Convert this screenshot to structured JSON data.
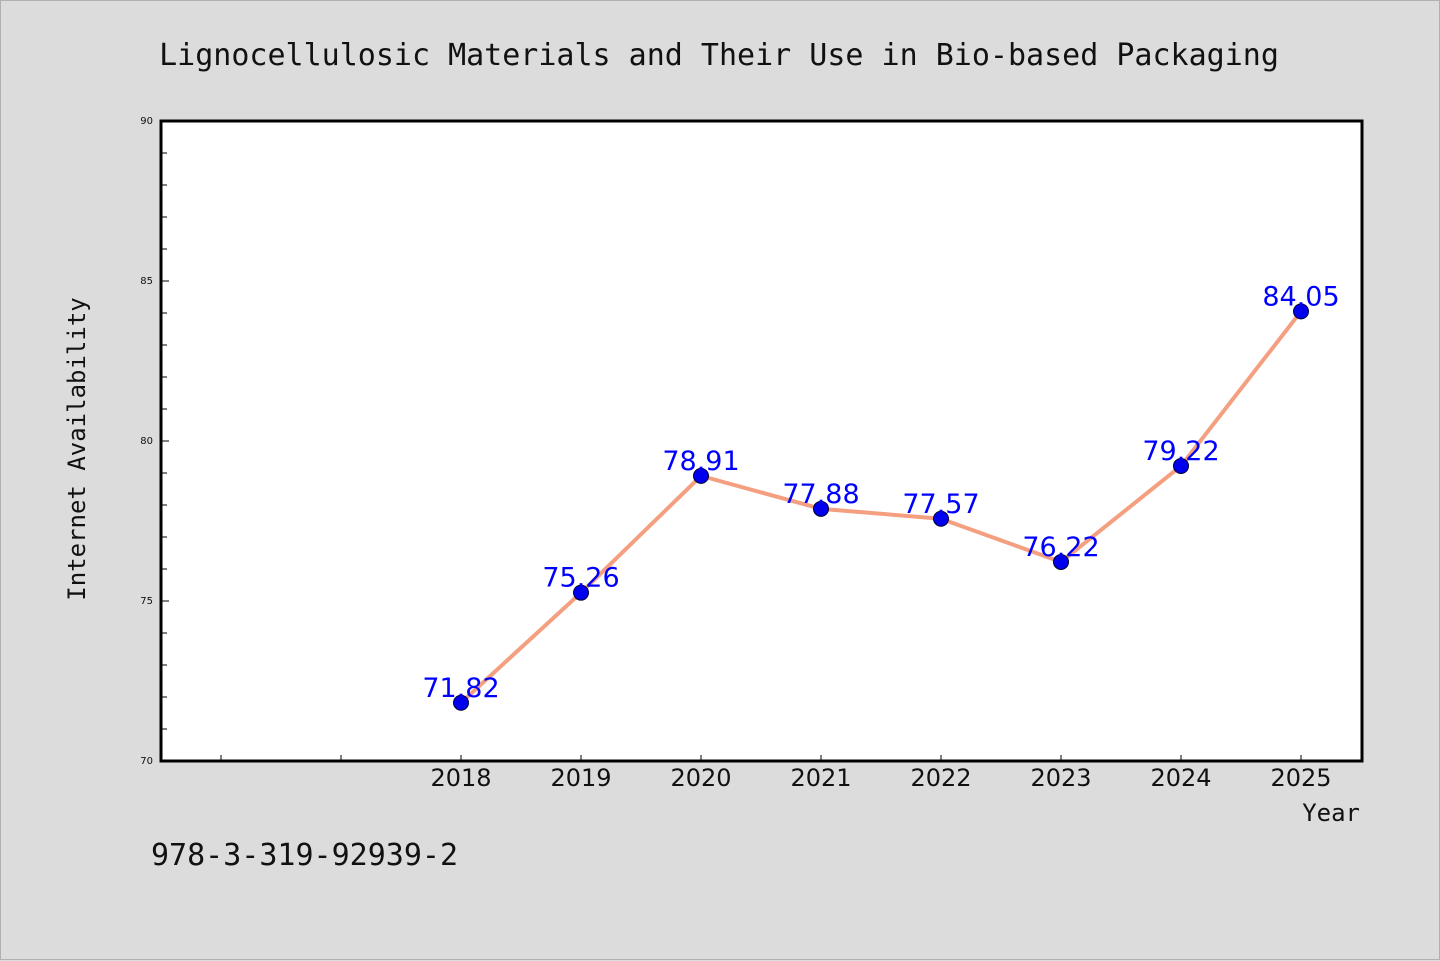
{
  "chart_data": {
    "type": "line",
    "title": "Lignocellulosic Materials and Their Use in Bio-based Packaging",
    "xlabel": "Year",
    "ylabel": "Internet Availability",
    "categories": [
      "2018",
      "2019",
      "2020",
      "2021",
      "2022",
      "2023",
      "2024",
      "2025"
    ],
    "series": [
      {
        "values": [
          71.82,
          75.26,
          78.91,
          77.88,
          77.57,
          76.22,
          79.22,
          84.05
        ],
        "data_labels": [
          "71.82",
          "75.26",
          "78.91",
          "77.88",
          "77.57",
          "76.22",
          "79.22",
          "84.05"
        ],
        "line_color": "#f4a080",
        "marker_color": "#0000ee",
        "label_color": "#0000ff"
      }
    ],
    "ylim": [
      70,
      90
    ],
    "y_ticks": [
      "70",
      "75",
      "80",
      "85",
      "90"
    ],
    "x_categories_offset": 2,
    "grid": false,
    "legend": "none"
  },
  "footer": {
    "isbn": "978-3-319-92939-2"
  }
}
